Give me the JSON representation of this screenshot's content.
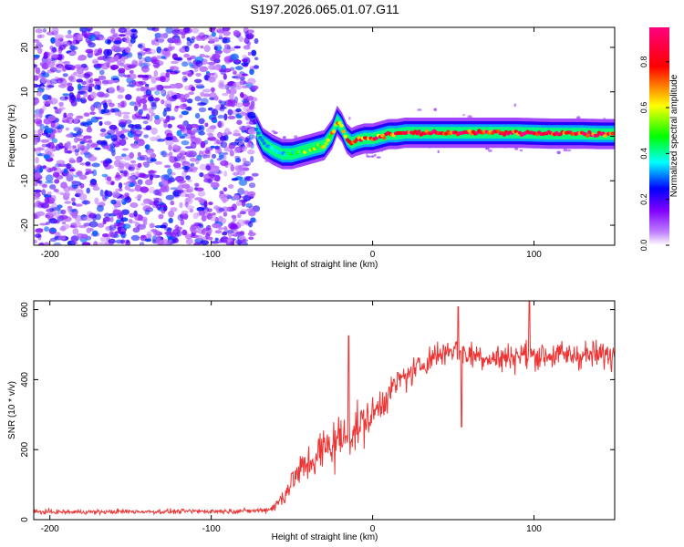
{
  "chart_data": [
    {
      "type": "heatmap",
      "title": "S197.2026.065.01.07.G11",
      "xlabel": "Height of straight line (km)",
      "ylabel": "Frequency (Hz)",
      "xlim": [
        -210,
        150
      ],
      "ylim": [
        -24.5,
        24.5
      ],
      "xticks": [
        -200,
        -100,
        0,
        100
      ],
      "xtick_labels": [
        "-200",
        "-100",
        "0",
        "100"
      ],
      "yticks": [
        -20,
        -10,
        0,
        10,
        20
      ],
      "ytick_labels": [
        "-20",
        "-10",
        "0",
        "10",
        "20"
      ],
      "colorbar": {
        "label": "Normalized spectral amplitude",
        "range": [
          0,
          0.95
        ],
        "ticks": [
          0,
          0.2,
          0.4,
          0.6,
          0.8
        ],
        "tick_labels": [
          "0.0",
          "0.2",
          "0.4",
          "0.6",
          "0.8"
        ],
        "colors": [
          "#ffffff",
          "#8000ff",
          "#0000ff",
          "#00ffff",
          "#00ff00",
          "#ffff00",
          "#ff0000",
          "#ff0080"
        ]
      },
      "noise_region": {
        "x": [
          -210,
          -72
        ],
        "description_amplitude": [
          0.05,
          0.3
        ]
      },
      "ridge": {
        "x": [
          -72,
          -68,
          -62,
          -56,
          -50,
          -45,
          -40,
          -35,
          -30,
          -25,
          -22,
          -19,
          -16,
          -13,
          -10,
          -5,
          0,
          5,
          10,
          15,
          20,
          30,
          40,
          50,
          60,
          70,
          80,
          90,
          100,
          110,
          120,
          130,
          140,
          150
        ],
        "y": [
          1.5,
          -1.5,
          -3.0,
          -4.0,
          -4.0,
          -3.5,
          -3.0,
          -2.5,
          -2.0,
          0.5,
          3.5,
          2.0,
          -0.5,
          -1.5,
          -1.0,
          -0.5,
          -0.5,
          0.0,
          0.5,
          0.5,
          0.8,
          0.8,
          0.8,
          0.8,
          0.8,
          0.8,
          0.8,
          0.8,
          0.7,
          0.6,
          0.6,
          0.6,
          0.5,
          0.5
        ],
        "amplitude": [
          0.25,
          0.3,
          0.35,
          0.4,
          0.45,
          0.5,
          0.55,
          0.6,
          0.6,
          0.65,
          0.7,
          0.7,
          0.75,
          0.8,
          0.8,
          0.8,
          0.85,
          0.85,
          0.85,
          0.85,
          0.9,
          0.9,
          0.9,
          0.9,
          0.9,
          0.9,
          0.9,
          0.9,
          0.9,
          0.9,
          0.9,
          0.9,
          0.9,
          0.9
        ]
      }
    },
    {
      "type": "line",
      "title": "",
      "xlabel": "Height of straight line (km)",
      "ylabel": "SNR (10 * v/v)",
      "xlim": [
        -210,
        150
      ],
      "ylim": [
        0,
        625
      ],
      "xticks": [
        -200,
        -100,
        0,
        100
      ],
      "xtick_labels": [
        "-200",
        "-100",
        "0",
        "100"
      ],
      "yticks": [
        0,
        200,
        400,
        600
      ],
      "ytick_labels": [
        "0",
        "200",
        "400",
        "600"
      ],
      "series": [
        {
          "name": "SNR",
          "color": "#ee3333",
          "x": [
            -210,
            -190,
            -170,
            -150,
            -130,
            -110,
            -90,
            -75,
            -65,
            -60,
            -55,
            -50,
            -45,
            -40,
            -35,
            -30,
            -25,
            -20,
            -15,
            -10,
            -5,
            0,
            5,
            10,
            15,
            20,
            25,
            30,
            35,
            40,
            45,
            50,
            55,
            60,
            65,
            70,
            75,
            80,
            85,
            90,
            95,
            100,
            105,
            110,
            115,
            120,
            125,
            130,
            135,
            140,
            145,
            150
          ],
          "values": [
            22,
            22,
            22,
            23,
            23,
            24,
            24,
            25,
            28,
            40,
            70,
            110,
            140,
            160,
            180,
            200,
            220,
            230,
            240,
            260,
            280,
            300,
            330,
            360,
            390,
            410,
            420,
            440,
            460,
            470,
            480,
            490,
            480,
            470,
            470,
            465,
            460,
            460,
            465,
            470,
            470,
            470,
            470,
            470,
            470,
            470,
            470,
            470,
            470,
            470,
            470,
            470
          ],
          "noise_amplitude": [
            8,
            8,
            8,
            8,
            8,
            8,
            8,
            8,
            10,
            20,
            40,
            50,
            60,
            70,
            80,
            90,
            100,
            90,
            90,
            80,
            80,
            60,
            60,
            55,
            50,
            50,
            50,
            50,
            50,
            50,
            50,
            50,
            50,
            50,
            50,
            50,
            50,
            50,
            50,
            50,
            50,
            50,
            50,
            50,
            50,
            50,
            50,
            50,
            50,
            50,
            50,
            50
          ],
          "spikes": [
            {
              "x": -15,
              "value": 525
            },
            {
              "x": 53,
              "value": 608
            },
            {
              "x": 55,
              "value": 265
            },
            {
              "x": 97,
              "value": 625
            }
          ]
        }
      ]
    }
  ]
}
